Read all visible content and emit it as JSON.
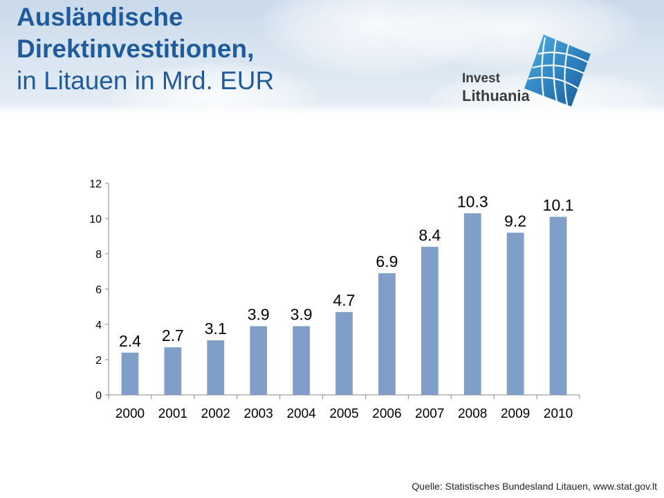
{
  "title": {
    "line1": "Ausländische",
    "line2_bold": "Direktinvestitionen",
    "line2_rest": ",",
    "line3": "in Litauen in Mrd. EUR"
  },
  "logo": {
    "line1": "Invest",
    "line2": "Lithuania",
    "icon": "globe-grid-icon"
  },
  "source": "Quelle: Statistisches Bundesland Litauen, www.stat.gov.lt",
  "colors": {
    "title": "#1f5b9c",
    "bar": "#7f9fc9",
    "logo_blue": "#1e78c0"
  },
  "chart_data": {
    "type": "bar",
    "categories": [
      "2000",
      "2001",
      "2002",
      "2003",
      "2004",
      "2005",
      "2006",
      "2007",
      "2008",
      "2009",
      "2010"
    ],
    "values": [
      2.4,
      2.7,
      3.1,
      3.9,
      3.9,
      4.7,
      6.9,
      8.4,
      10.3,
      9.2,
      10.1
    ],
    "data_labels": [
      "2.4",
      "2.7",
      "3.1",
      "3.9",
      "3.9",
      "4.7",
      "6.9",
      "8.4",
      "10.3",
      "9.2",
      "10.1"
    ],
    "yticks": [
      "0",
      "2",
      "4",
      "6",
      "8",
      "10",
      "12"
    ],
    "ylim": [
      0,
      12
    ],
    "title": "",
    "xlabel": "",
    "ylabel": "",
    "grid": false,
    "legend": "none"
  }
}
